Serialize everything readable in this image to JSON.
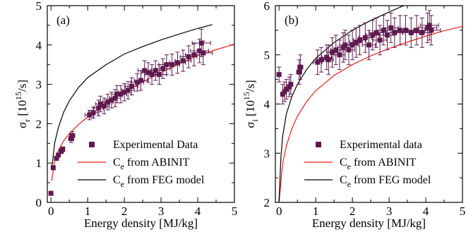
{
  "chart_data": [
    {
      "type": "scatter",
      "panel_label": "(a)",
      "xlabel": "Energy density [MJ/kg]",
      "ylabel_main": "σ",
      "ylabel_sub": "r",
      "ylabel_unit_open": " [10",
      "ylabel_unit_exp": "15",
      "ylabel_unit_close": "/s]",
      "xlim": [
        -0.1,
        5
      ],
      "ylim": [
        0,
        5
      ],
      "xticks": [
        0,
        1,
        2,
        3,
        4,
        5
      ],
      "yticks": [
        0,
        1,
        2,
        3,
        4,
        5
      ],
      "legend_position": "bottom-right",
      "series": [
        {
          "name": "Experimental Data",
          "kind": "points",
          "color": "#5e1a4e",
          "points": [
            {
              "x": 0.0,
              "y": 0.23,
              "ex": 0.0,
              "ey": 0.05
            },
            {
              "x": 0.06,
              "y": 0.88,
              "ex": 0.03,
              "ey": 0.05
            },
            {
              "x": 0.15,
              "y": 1.12,
              "ex": 0.04,
              "ey": 0.05
            },
            {
              "x": 0.2,
              "y": 1.2,
              "ex": 0.04,
              "ey": 0.05
            },
            {
              "x": 0.28,
              "y": 1.3,
              "ex": 0.05,
              "ey": 0.06
            },
            {
              "x": 0.32,
              "y": 1.35,
              "ex": 0.05,
              "ey": 0.06
            },
            {
              "x": 0.55,
              "y": 1.62,
              "ex": 0.07,
              "ey": 0.1
            },
            {
              "x": 0.58,
              "y": 1.7,
              "ex": 0.07,
              "ey": 0.1
            },
            {
              "x": 1.05,
              "y": 2.22,
              "ex": 0.12,
              "ey": 0.12
            },
            {
              "x": 1.15,
              "y": 2.28,
              "ex": 0.12,
              "ey": 0.14
            },
            {
              "x": 1.3,
              "y": 2.4,
              "ex": 0.13,
              "ey": 0.2
            },
            {
              "x": 1.35,
              "y": 2.5,
              "ex": 0.13,
              "ey": 0.2
            },
            {
              "x": 1.45,
              "y": 2.45,
              "ex": 0.14,
              "ey": 0.2
            },
            {
              "x": 1.55,
              "y": 2.55,
              "ex": 0.14,
              "ey": 0.2
            },
            {
              "x": 1.65,
              "y": 2.6,
              "ex": 0.15,
              "ey": 0.2
            },
            {
              "x": 1.75,
              "y": 2.65,
              "ex": 0.15,
              "ey": 0.22
            },
            {
              "x": 1.8,
              "y": 2.75,
              "ex": 0.15,
              "ey": 0.22
            },
            {
              "x": 1.9,
              "y": 2.75,
              "ex": 0.16,
              "ey": 0.22
            },
            {
              "x": 2.0,
              "y": 2.8,
              "ex": 0.16,
              "ey": 0.22
            },
            {
              "x": 2.1,
              "y": 2.85,
              "ex": 0.17,
              "ey": 0.22
            },
            {
              "x": 2.2,
              "y": 2.95,
              "ex": 0.17,
              "ey": 0.22
            },
            {
              "x": 2.35,
              "y": 3.05,
              "ex": 0.18,
              "ey": 0.22
            },
            {
              "x": 2.45,
              "y": 3.1,
              "ex": 0.18,
              "ey": 0.25
            },
            {
              "x": 2.55,
              "y": 3.35,
              "ex": 0.18,
              "ey": 0.25
            },
            {
              "x": 2.65,
              "y": 3.3,
              "ex": 0.19,
              "ey": 0.25
            },
            {
              "x": 2.75,
              "y": 3.25,
              "ex": 0.19,
              "ey": 0.25
            },
            {
              "x": 2.85,
              "y": 3.35,
              "ex": 0.2,
              "ey": 0.25
            },
            {
              "x": 2.95,
              "y": 3.25,
              "ex": 0.2,
              "ey": 0.25
            },
            {
              "x": 3.05,
              "y": 3.4,
              "ex": 0.2,
              "ey": 0.25
            },
            {
              "x": 3.15,
              "y": 3.5,
              "ex": 0.21,
              "ey": 0.25
            },
            {
              "x": 3.3,
              "y": 3.5,
              "ex": 0.21,
              "ey": 0.27
            },
            {
              "x": 3.45,
              "y": 3.55,
              "ex": 0.22,
              "ey": 0.27
            },
            {
              "x": 3.6,
              "y": 3.6,
              "ex": 0.22,
              "ey": 0.27
            },
            {
              "x": 3.75,
              "y": 3.7,
              "ex": 0.23,
              "ey": 0.28
            },
            {
              "x": 3.9,
              "y": 3.75,
              "ex": 0.24,
              "ey": 0.28
            },
            {
              "x": 4.05,
              "y": 3.85,
              "ex": 0.25,
              "ey": 0.3
            },
            {
              "x": 4.1,
              "y": 4.05,
              "ex": 0.25,
              "ey": 0.35
            },
            {
              "x": 4.15,
              "y": 3.8,
              "ex": 0.25,
              "ey": 0.3
            }
          ]
        },
        {
          "name": "C from ABINIT",
          "name_main": "C",
          "name_sub": "e",
          "name_rest": " from ABINIT",
          "kind": "line",
          "color": "#e8201c",
          "points": [
            {
              "x": 0.02,
              "y": 0.55
            },
            {
              "x": 0.1,
              "y": 1.05
            },
            {
              "x": 0.2,
              "y": 1.32
            },
            {
              "x": 0.35,
              "y": 1.57
            },
            {
              "x": 0.5,
              "y": 1.75
            },
            {
              "x": 0.75,
              "y": 1.98
            },
            {
              "x": 1.0,
              "y": 2.17
            },
            {
              "x": 1.5,
              "y": 2.5
            },
            {
              "x": 2.0,
              "y": 2.8
            },
            {
              "x": 2.5,
              "y": 3.06
            },
            {
              "x": 3.0,
              "y": 3.3
            },
            {
              "x": 3.5,
              "y": 3.52
            },
            {
              "x": 4.0,
              "y": 3.73
            },
            {
              "x": 4.5,
              "y": 3.88
            },
            {
              "x": 5.0,
              "y": 4.02
            }
          ]
        },
        {
          "name": "C from FEG model",
          "name_main": "C",
          "name_sub": "e",
          "name_rest": " from FEG model",
          "kind": "line",
          "color": "#000000",
          "points": [
            {
              "x": 0.02,
              "y": 0.85
            },
            {
              "x": 0.1,
              "y": 1.5
            },
            {
              "x": 0.2,
              "y": 1.9
            },
            {
              "x": 0.35,
              "y": 2.3
            },
            {
              "x": 0.5,
              "y": 2.58
            },
            {
              "x": 0.75,
              "y": 2.92
            },
            {
              "x": 1.0,
              "y": 3.17
            },
            {
              "x": 1.5,
              "y": 3.5
            },
            {
              "x": 2.0,
              "y": 3.77
            },
            {
              "x": 2.5,
              "y": 3.96
            },
            {
              "x": 3.0,
              "y": 4.13
            },
            {
              "x": 3.5,
              "y": 4.28
            },
            {
              "x": 4.0,
              "y": 4.42
            },
            {
              "x": 4.4,
              "y": 4.52
            }
          ]
        }
      ]
    },
    {
      "type": "scatter",
      "panel_label": "(b)",
      "xlabel": "Energy density [MJ/kg]",
      "ylabel_main": "σ",
      "ylabel_sub": "i",
      "ylabel_unit_open": " [10",
      "ylabel_unit_exp": "15",
      "ylabel_unit_close": "/s]",
      "xlim": [
        -0.1,
        5
      ],
      "ylim": [
        2,
        6
      ],
      "xticks": [
        0,
        1,
        2,
        3,
        4,
        5
      ],
      "yticks": [
        2,
        3,
        4,
        5,
        6
      ],
      "legend_position": "bottom-right",
      "series": [
        {
          "name": "Experimental data",
          "kind": "points",
          "color": "#5e1a4e",
          "points": [
            {
              "x": 0.0,
              "y": 4.6,
              "ex": 0.0,
              "ey": 0.15
            },
            {
              "x": 0.1,
              "y": 4.2,
              "ex": 0.03,
              "ey": 0.2
            },
            {
              "x": 0.15,
              "y": 4.25,
              "ex": 0.04,
              "ey": 0.2
            },
            {
              "x": 0.2,
              "y": 4.3,
              "ex": 0.04,
              "ey": 0.2
            },
            {
              "x": 0.28,
              "y": 4.35,
              "ex": 0.05,
              "ey": 0.2
            },
            {
              "x": 0.32,
              "y": 4.4,
              "ex": 0.05,
              "ey": 0.2
            },
            {
              "x": 0.55,
              "y": 4.65,
              "ex": 0.07,
              "ey": 0.25
            },
            {
              "x": 0.58,
              "y": 4.75,
              "ex": 0.07,
              "ey": 0.25
            },
            {
              "x": 1.05,
              "y": 4.85,
              "ex": 0.12,
              "ey": 0.25
            },
            {
              "x": 1.15,
              "y": 4.9,
              "ex": 0.12,
              "ey": 0.25
            },
            {
              "x": 1.3,
              "y": 4.95,
              "ex": 0.13,
              "ey": 0.25
            },
            {
              "x": 1.35,
              "y": 4.9,
              "ex": 0.13,
              "ey": 0.3
            },
            {
              "x": 1.45,
              "y": 5.05,
              "ex": 0.14,
              "ey": 0.3
            },
            {
              "x": 1.55,
              "y": 5.1,
              "ex": 0.14,
              "ey": 0.3
            },
            {
              "x": 1.65,
              "y": 5.0,
              "ex": 0.15,
              "ey": 0.3
            },
            {
              "x": 1.75,
              "y": 5.15,
              "ex": 0.15,
              "ey": 0.3
            },
            {
              "x": 1.8,
              "y": 5.2,
              "ex": 0.15,
              "ey": 0.3
            },
            {
              "x": 1.9,
              "y": 5.1,
              "ex": 0.16,
              "ey": 0.3
            },
            {
              "x": 2.0,
              "y": 5.2,
              "ex": 0.16,
              "ey": 0.3
            },
            {
              "x": 2.1,
              "y": 5.25,
              "ex": 0.17,
              "ey": 0.3
            },
            {
              "x": 2.2,
              "y": 5.3,
              "ex": 0.17,
              "ey": 0.3
            },
            {
              "x": 2.35,
              "y": 5.35,
              "ex": 0.18,
              "ey": 0.3
            },
            {
              "x": 2.45,
              "y": 5.2,
              "ex": 0.18,
              "ey": 0.3
            },
            {
              "x": 2.55,
              "y": 5.4,
              "ex": 0.18,
              "ey": 0.3
            },
            {
              "x": 2.65,
              "y": 5.45,
              "ex": 0.19,
              "ey": 0.3
            },
            {
              "x": 2.75,
              "y": 5.3,
              "ex": 0.19,
              "ey": 0.3
            },
            {
              "x": 2.85,
              "y": 5.5,
              "ex": 0.2,
              "ey": 0.3
            },
            {
              "x": 2.95,
              "y": 5.4,
              "ex": 0.2,
              "ey": 0.3
            },
            {
              "x": 3.05,
              "y": 5.55,
              "ex": 0.2,
              "ey": 0.3
            },
            {
              "x": 3.15,
              "y": 5.45,
              "ex": 0.21,
              "ey": 0.3
            },
            {
              "x": 3.3,
              "y": 5.5,
              "ex": 0.21,
              "ey": 0.3
            },
            {
              "x": 3.45,
              "y": 5.5,
              "ex": 0.22,
              "ey": 0.3
            },
            {
              "x": 3.6,
              "y": 5.45,
              "ex": 0.22,
              "ey": 0.3
            },
            {
              "x": 3.75,
              "y": 5.5,
              "ex": 0.23,
              "ey": 0.3
            },
            {
              "x": 3.9,
              "y": 5.45,
              "ex": 0.24,
              "ey": 0.3
            },
            {
              "x": 4.05,
              "y": 5.55,
              "ex": 0.25,
              "ey": 0.3
            },
            {
              "x": 4.1,
              "y": 5.6,
              "ex": 0.25,
              "ey": 0.3
            },
            {
              "x": 4.15,
              "y": 5.5,
              "ex": 0.25,
              "ey": 0.3
            }
          ]
        },
        {
          "name": "C from ABINIT",
          "name_main": "C",
          "name_sub": "e",
          "name_rest": " from ABINIT",
          "kind": "line",
          "color": "#e8201c",
          "points": [
            {
              "x": 0.0,
              "y": 2.0
            },
            {
              "x": 0.1,
              "y": 2.8
            },
            {
              "x": 0.2,
              "y": 3.15
            },
            {
              "x": 0.35,
              "y": 3.5
            },
            {
              "x": 0.5,
              "y": 3.75
            },
            {
              "x": 0.75,
              "y": 4.05
            },
            {
              "x": 1.0,
              "y": 4.27
            },
            {
              "x": 1.5,
              "y": 4.58
            },
            {
              "x": 2.0,
              "y": 4.8
            },
            {
              "x": 2.5,
              "y": 4.98
            },
            {
              "x": 3.0,
              "y": 5.13
            },
            {
              "x": 3.5,
              "y": 5.26
            },
            {
              "x": 4.0,
              "y": 5.38
            },
            {
              "x": 4.5,
              "y": 5.49
            },
            {
              "x": 5.0,
              "y": 5.58
            }
          ]
        },
        {
          "name": "C from FEG model",
          "name_main": "C",
          "name_sub": "e",
          "name_rest": " from FEG model",
          "kind": "line",
          "color": "#000000",
          "points": [
            {
              "x": 0.0,
              "y": 2.0
            },
            {
              "x": 0.05,
              "y": 2.9
            },
            {
              "x": 0.1,
              "y": 3.35
            },
            {
              "x": 0.2,
              "y": 3.8
            },
            {
              "x": 0.35,
              "y": 4.15
            },
            {
              "x": 0.5,
              "y": 4.4
            },
            {
              "x": 0.75,
              "y": 4.7
            },
            {
              "x": 1.0,
              "y": 4.93
            },
            {
              "x": 1.5,
              "y": 5.25
            },
            {
              "x": 2.0,
              "y": 5.5
            },
            {
              "x": 2.5,
              "y": 5.7
            },
            {
              "x": 3.0,
              "y": 5.87
            },
            {
              "x": 3.4,
              "y": 6.0
            }
          ]
        }
      ]
    }
  ]
}
